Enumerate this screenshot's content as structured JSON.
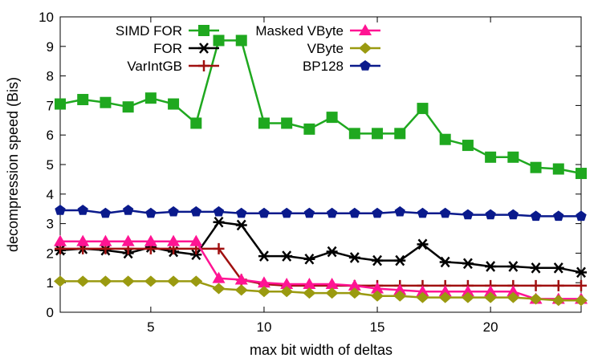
{
  "chart_data": {
    "type": "line",
    "title": "",
    "xlabel": "max bit width of deltas",
    "ylabel": "decompression speed (Bis)",
    "xlim": [
      1,
      24
    ],
    "ylim": [
      0,
      10
    ],
    "xticks": [
      5,
      10,
      15,
      20
    ],
    "yticks": [
      0,
      1,
      2,
      3,
      4,
      5,
      6,
      7,
      8,
      9,
      10
    ],
    "grid": false,
    "legend_placement": "top-left",
    "series": [
      {
        "name": "SIMD FOR",
        "color": "#1fa81f",
        "marker": "square",
        "x": [
          1,
          2,
          3,
          4,
          5,
          6,
          7,
          8,
          9,
          10,
          11,
          12,
          13,
          14,
          15,
          16,
          17,
          18,
          19,
          20,
          21,
          22,
          23,
          24
        ],
        "values": [
          7.05,
          7.2,
          7.1,
          6.95,
          7.25,
          7.05,
          6.4,
          9.2,
          9.2,
          6.4,
          6.4,
          6.2,
          6.6,
          6.05,
          6.05,
          6.05,
          6.9,
          5.85,
          5.65,
          5.25,
          5.25,
          4.9,
          4.85,
          4.7
        ]
      },
      {
        "name": "FOR",
        "color": "#000000",
        "marker": "asterisk",
        "x": [
          1,
          2,
          3,
          4,
          5,
          6,
          7,
          8,
          9,
          10,
          11,
          12,
          13,
          14,
          15,
          16,
          17,
          18,
          19,
          20,
          21,
          22,
          23,
          24
        ],
        "values": [
          2.1,
          2.15,
          2.1,
          2.0,
          2.2,
          2.05,
          1.95,
          3.05,
          2.95,
          1.9,
          1.9,
          1.8,
          2.05,
          1.85,
          1.75,
          1.75,
          2.3,
          1.7,
          1.65,
          1.55,
          1.55,
          1.5,
          1.5,
          1.35
        ]
      },
      {
        "name": "VarIntGB",
        "color": "#a01010",
        "marker": "plus",
        "x": [
          1,
          2,
          3,
          4,
          5,
          6,
          7,
          8,
          9,
          10,
          11,
          12,
          13,
          14,
          15,
          16,
          17,
          18,
          19,
          20,
          21,
          22,
          23,
          24
        ],
        "values": [
          2.15,
          2.15,
          2.15,
          2.15,
          2.15,
          2.15,
          2.15,
          2.15,
          1.1,
          0.95,
          0.9,
          0.9,
          0.9,
          0.9,
          0.9,
          0.9,
          0.9,
          0.9,
          0.9,
          0.9,
          0.9,
          0.9,
          0.9,
          0.9
        ]
      },
      {
        "name": "Masked VByte",
        "color": "#ff1493",
        "marker": "triangle",
        "x": [
          1,
          2,
          3,
          4,
          5,
          6,
          7,
          8,
          9,
          10,
          11,
          12,
          13,
          14,
          15,
          16,
          17,
          18,
          19,
          20,
          21,
          22,
          23,
          24
        ],
        "values": [
          2.4,
          2.4,
          2.4,
          2.4,
          2.4,
          2.4,
          2.4,
          1.15,
          1.1,
          1.0,
          0.95,
          0.95,
          0.95,
          0.9,
          0.8,
          0.75,
          0.7,
          0.7,
          0.7,
          0.7,
          0.7,
          0.45,
          0.45,
          0.45
        ]
      },
      {
        "name": "VByte",
        "color": "#9a9a10",
        "marker": "diamond",
        "x": [
          1,
          2,
          3,
          4,
          5,
          6,
          7,
          8,
          9,
          10,
          11,
          12,
          13,
          14,
          15,
          16,
          17,
          18,
          19,
          20,
          21,
          22,
          23,
          24
        ],
        "values": [
          1.05,
          1.05,
          1.05,
          1.05,
          1.05,
          1.05,
          1.05,
          0.8,
          0.75,
          0.7,
          0.7,
          0.65,
          0.65,
          0.65,
          0.55,
          0.55,
          0.5,
          0.5,
          0.5,
          0.5,
          0.5,
          0.45,
          0.4,
          0.4
        ]
      },
      {
        "name": "BP128",
        "color": "#0a1a8c",
        "marker": "pentagon",
        "x": [
          1,
          2,
          3,
          4,
          5,
          6,
          7,
          8,
          9,
          10,
          11,
          12,
          13,
          14,
          15,
          16,
          17,
          18,
          19,
          20,
          21,
          22,
          23,
          24
        ],
        "values": [
          3.45,
          3.45,
          3.35,
          3.45,
          3.35,
          3.4,
          3.4,
          3.4,
          3.35,
          3.35,
          3.35,
          3.35,
          3.35,
          3.35,
          3.35,
          3.4,
          3.35,
          3.35,
          3.3,
          3.3,
          3.3,
          3.25,
          3.25,
          3.25
        ]
      }
    ]
  }
}
